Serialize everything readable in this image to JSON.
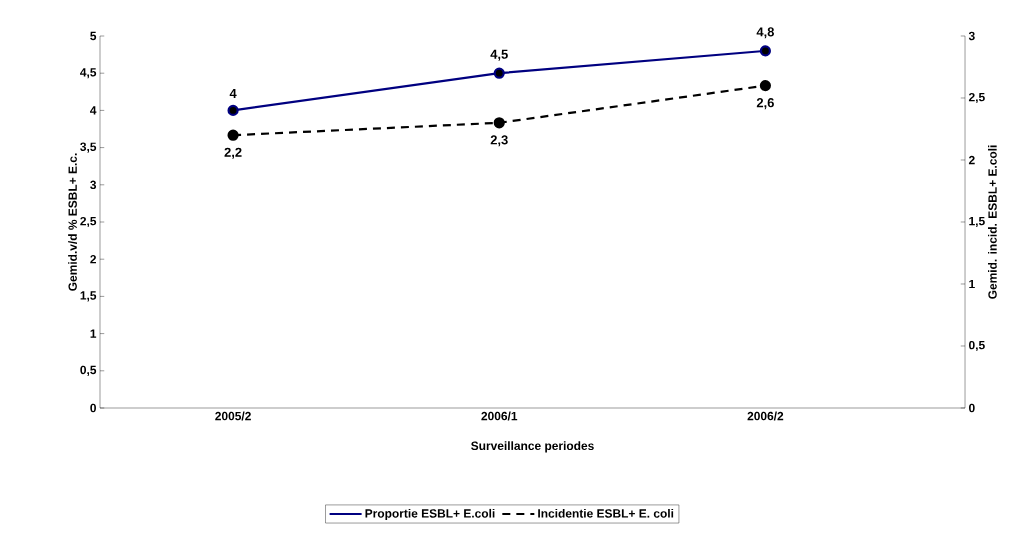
{
  "chart_data": {
    "type": "line",
    "xlabel": "Surveillance periodes",
    "ylabel": "Gemid.v/d % ESBL+ E.c.",
    "y2label": "Gemid. incid. ESBL+ E.coli",
    "categories": [
      "2005/2",
      "2006/1",
      "2006/2"
    ],
    "series": [
      {
        "name": "Proportie ESBL+ E.coli",
        "color": "#000080",
        "values": [
          4,
          4.5,
          4.8
        ],
        "value_labels": [
          "4",
          "4,5",
          "4,8"
        ],
        "line_style": "solid"
      },
      {
        "name": "Incidentie ESBL+ E. coli",
        "color": "#000000",
        "values": [
          2.2,
          2.3,
          2.6
        ],
        "value_labels": [
          "2,2",
          "2,3",
          "2,6"
        ],
        "line_style": "dashed",
        "axis": "y2"
      }
    ],
    "ylim": [
      0,
      5
    ],
    "yticks": [
      0,
      {
        "value": 0.5,
        "label": "0,5"
      },
      1,
      {
        "value": 1.5,
        "label": "1,5"
      },
      2,
      {
        "value": 2.5,
        "label": "2,5"
      },
      3,
      {
        "value": 3.5,
        "label": "3,5"
      },
      4,
      {
        "value": 4.5,
        "label": "4,5"
      },
      5
    ],
    "y2lim": [
      0,
      3
    ],
    "y2ticks": [
      0,
      {
        "value": 0.5,
        "label": "0,5"
      },
      1,
      {
        "value": 1.5,
        "label": "1,5"
      },
      2,
      {
        "value": 2.5,
        "label": "2,5"
      },
      3
    ],
    "marker": "circle",
    "grid": false,
    "legend": "bottom"
  }
}
